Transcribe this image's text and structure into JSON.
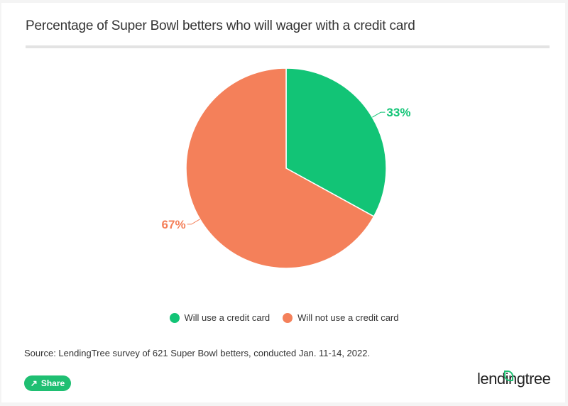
{
  "title": "Percentage of Super Bowl betters who will wager with a credit card",
  "chart_data": {
    "type": "pie",
    "slices": [
      {
        "label": "Will use a credit card",
        "value": 33,
        "display": "33%",
        "color": "#12c476"
      },
      {
        "label": "Will not use a credit card",
        "value": 67,
        "display": "67%",
        "color": "#f4805a"
      }
    ],
    "start_angle": "top, clockwise",
    "legend_position": "bottom"
  },
  "source": "Source: LendingTree survey of 621 Super Bowl betters, conducted Jan. 11-14, 2022.",
  "share_label": "Share",
  "share_icon": "share-icon",
  "logo_text": "lendingtree"
}
